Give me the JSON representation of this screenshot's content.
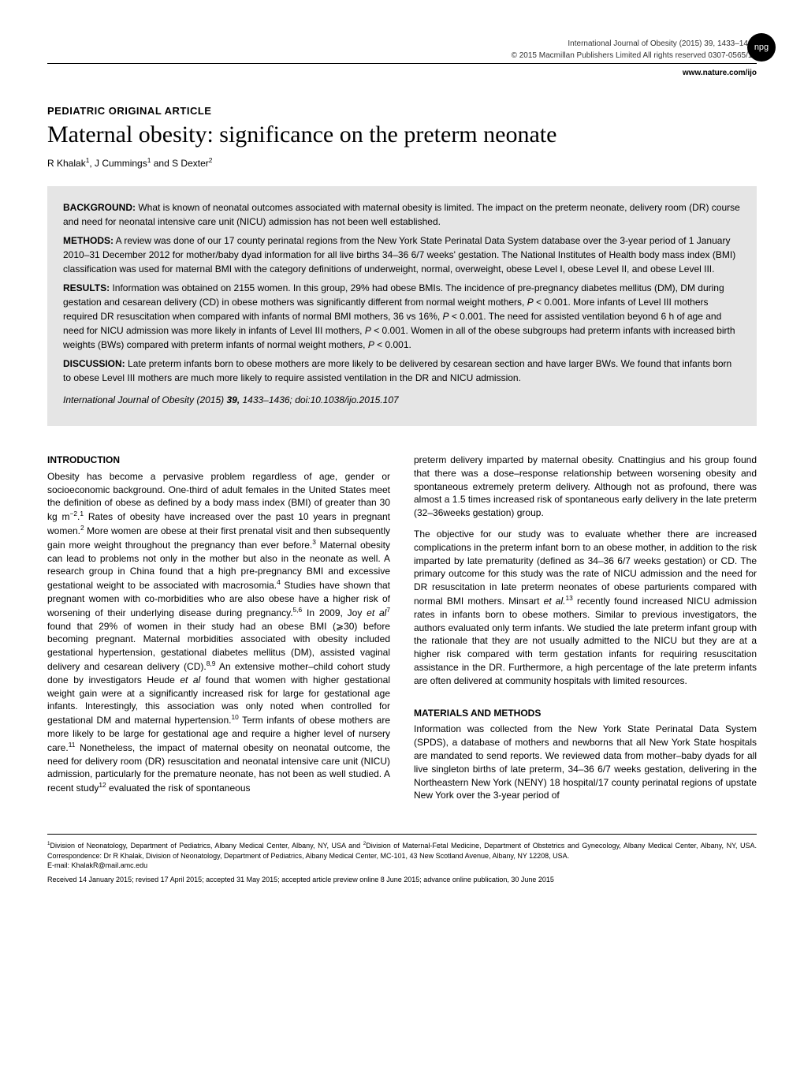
{
  "header": {
    "journal_ref": "International Journal of Obesity (2015) 39, 1433–1436",
    "copyright": "© 2015 Macmillan Publishers Limited   All rights reserved 0307-0565/15",
    "website": "www.nature.com/ijo",
    "npg_label": "npg"
  },
  "article": {
    "type": "PEDIATRIC ORIGINAL ARTICLE",
    "title": "Maternal obesity: significance on the preterm neonate",
    "authors_html": "R Khalak<sup>1</sup>, J Cummings<sup>1</sup> and S Dexter<sup>2</sup>"
  },
  "abstract": {
    "background_label": "BACKGROUND:",
    "background": " What is known of neonatal outcomes associated with maternal obesity is limited. The impact on the preterm neonate, delivery room (DR) course and need for neonatal intensive care unit (NICU) admission has not been well established.",
    "methods_label": "METHODS:",
    "methods": " A review was done of our 17 county perinatal regions from the New York State Perinatal Data System database over the 3-year period of 1 January 2010–31 December 2012 for mother/baby dyad information for all live births 34–36 6/7 weeks' gestation. The National Institutes of Health body mass index (BMI) classification was used for maternal BMI with the category definitions of underweight, normal, overweight, obese Level I, obese Level II, and obese Level III.",
    "results_label": "RESULTS:",
    "results_html": " Information was obtained on 2155 women. In this group, 29% had obese BMIs. The incidence of pre-pregnancy diabetes mellitus (DM), DM during gestation and cesarean delivery (CD) in obese mothers was significantly different from normal weight mothers, <i>P</i> &lt; 0.001. More infants of Level III mothers required DR resuscitation when compared with infants of normal BMI mothers, 36 vs 16%, <i>P</i> &lt; 0.001. The need for assisted ventilation beyond 6 h of age and need for NICU admission was more likely in infants of Level III mothers, <i>P</i> &lt; 0.001. Women in all of the obese subgroups had preterm infants with increased birth weights (BWs) compared with preterm infants of normal weight mothers, <i>P</i> &lt; 0.001.",
    "discussion_label": "DISCUSSION:",
    "discussion": " Late preterm infants born to obese mothers are more likely to be delivered by cesarean section and have larger BWs. We found that infants born to obese Level III mothers are much more likely to require assisted ventilation in the DR and NICU admission.",
    "citation_html": "<i>International Journal of Obesity</i> (2015) <b>39,</b> 1433–1436; doi:10.1038/ijo.2015.107"
  },
  "body": {
    "intro_heading": "INTRODUCTION",
    "intro_p1_html": "Obesity has become a pervasive problem regardless of age, gender or socioeconomic background. One-third of adult females in the United States meet the definition of obese as defined by a body mass index (BMI) of greater than 30 kg m<sup>−2</sup>.<sup>1</sup> Rates of obesity have increased over the past 10 years in pregnant women.<sup>2</sup> More women are obese at their first prenatal visit and then subsequently gain more weight throughout the pregnancy than ever before.<sup>3</sup> Maternal obesity can lead to problems not only in the mother but also in the neonate as well. A research group in China found that a high pre-pregnancy BMI and excessive gestational weight to be associated with macrosomia.<sup>4</sup> Studies have shown that pregnant women with co-morbidities who are also obese have a higher risk of worsening of their underlying disease during pregnancy.<sup>5,6</sup> In 2009, Joy <i>et al</i><sup>7</sup> found that 29% of women in their study had an obese BMI (⩾30) before becoming pregnant. Maternal morbidities associated with obesity included gestational hypertension, gestational diabetes mellitus (DM), assisted vaginal delivery and cesarean delivery (CD).<sup>8,9</sup> An extensive mother–child cohort study done by investigators Heude <i>et al</i> found that women with higher gestational weight gain were at a significantly increased risk for large for gestational age infants. Interestingly, this association was only noted when controlled for gestational DM and maternal hypertension.<sup>10</sup> Term infants of obese mothers are more likely to be large for gestational age and require a higher level of nursery care.<sup>11</sup> Nonetheless, the impact of maternal obesity on neonatal outcome, the need for delivery room (DR) resuscitation and neonatal intensive care unit (NICU) admission, particularly for the premature neonate, has not been as well studied. A recent study<sup>12</sup> evaluated the risk of spontaneous",
    "intro_p2_html": "preterm delivery imparted by maternal obesity. Cnattingius and his group found that there was a dose–response relationship between worsening obesity and spontaneous extremely preterm delivery. Although not as profound, there was almost a 1.5 times increased risk of spontaneous early delivery in the late preterm (32–36weeks gestation) group.",
    "intro_p3_html": "The objective for our study was to evaluate whether there are increased complications in the preterm infant born to an obese mother, in addition to the risk imparted by late prematurity (defined as 34–36 6/7 weeks gestation) or CD. The primary outcome for this study was the rate of NICU admission and the need for DR resuscitation in late preterm neonates of obese parturients compared with normal BMI mothers. Minsart <i>et al.</i><sup>13</sup> recently found increased NICU admission rates in infants born to obese mothers. Similar to previous investigators, the authors evaluated only term infants. We studied the late preterm infant group with the rationale that they are not usually admitted to the NICU but they are at a higher risk compared with term gestation infants for requiring resuscitation assistance in the DR. Furthermore, a high percentage of the late preterm infants are often delivered at community hospitals with limited resources.",
    "methods_heading": "MATERIALS AND METHODS",
    "methods_p1": "Information was collected from the New York State Perinatal Data System (SPDS), a database of mothers and newborns that all New York State hospitals are mandated to send reports. We reviewed data from mother–baby dyads for all live singleton births of late preterm, 34–36 6/7 weeks gestation, delivering in the Northeastern New York (NENY) 18 hospital/17 county perinatal regions of upstate New York over the 3-year period of"
  },
  "footer": {
    "affiliations_html": "<sup>1</sup>Division of Neonatology, Department of Pediatrics, Albany Medical Center, Albany, NY, USA and <sup>2</sup>Division of Maternal-Fetal Medicine, Department of Obstetrics and Gynecology, Albany Medical Center, Albany, NY, USA. Correspondence: Dr R Khalak, Division of Neonatology, Department of Pediatrics, Albany Medical Center, MC-101, 43 New Scotland Avenue, Albany, NY 12208, USA.",
    "email": "E-mail: KhalakR@mail.amc.edu",
    "received": "Received 14 January 2015; revised 17 April 2015; accepted 31 May 2015; accepted article preview online 8 June 2015; advance online publication, 30 June 2015"
  }
}
